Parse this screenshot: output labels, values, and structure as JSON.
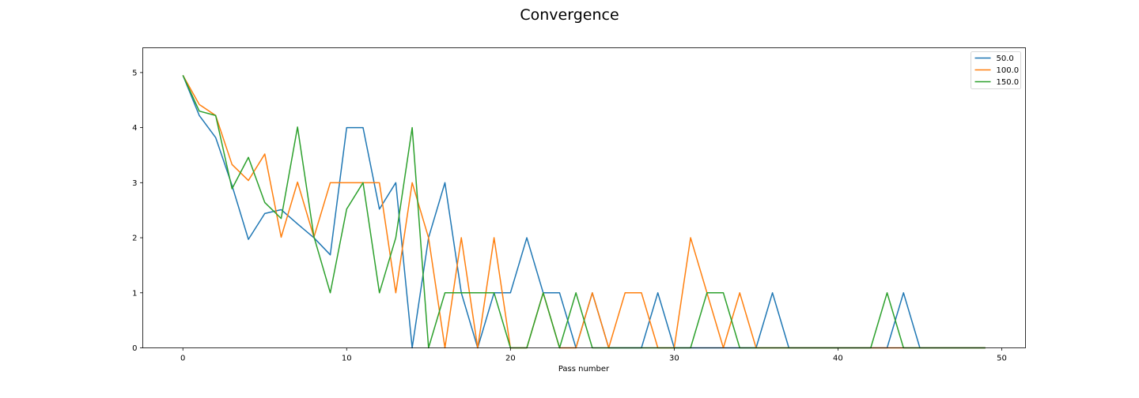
{
  "chart_data": {
    "type": "line",
    "title": "Convergence",
    "xlabel": "Pass number",
    "ylabel": "",
    "xlim": [
      -2.45,
      51.45
    ],
    "ylim": [
      0,
      5.45
    ],
    "xticks": [
      0,
      10,
      20,
      30,
      40,
      50
    ],
    "yticks": [
      0,
      1,
      2,
      3,
      4,
      5
    ],
    "grid": false,
    "legend_position": "top-right",
    "x": [
      0,
      1,
      2,
      3,
      4,
      5,
      6,
      7,
      8,
      9,
      10,
      11,
      12,
      13,
      14,
      15,
      16,
      17,
      18,
      19,
      20,
      21,
      22,
      23,
      24,
      25,
      26,
      27,
      28,
      29,
      30,
      31,
      32,
      33,
      34,
      35,
      36,
      37,
      38,
      39,
      40,
      41,
      42,
      43,
      44,
      45,
      46,
      47,
      48,
      49
    ],
    "series": [
      {
        "name": "50.0",
        "color": "#1f77b4",
        "values": [
          4.95,
          4.22,
          3.82,
          2.95,
          1.97,
          2.44,
          2.51,
          2.25,
          2.0,
          1.69,
          4.0,
          4.0,
          2.52,
          3.0,
          0,
          2.0,
          3.0,
          1.0,
          0,
          1.0,
          1.0,
          2.0,
          1.0,
          1.0,
          0,
          1.0,
          0,
          0,
          0,
          1.0,
          0,
          0,
          0,
          0,
          0,
          0,
          1.0,
          0,
          0,
          0,
          0,
          0,
          0,
          0,
          1.0,
          0,
          0,
          0,
          0,
          0
        ]
      },
      {
        "name": "100.0",
        "color": "#ff7f0e",
        "values": [
          4.95,
          4.42,
          4.22,
          3.33,
          3.04,
          3.52,
          2.01,
          3.01,
          2.01,
          3.0,
          3.0,
          3.0,
          3.0,
          1.0,
          3.0,
          2.0,
          0,
          2.0,
          0,
          2.0,
          0,
          0,
          1.0,
          0,
          0,
          1.0,
          0,
          1.0,
          1.0,
          0,
          0,
          2.0,
          1.0,
          0,
          1.0,
          0,
          0,
          0,
          0,
          0,
          0,
          0,
          0,
          0,
          0,
          0,
          0,
          0,
          0,
          0
        ]
      },
      {
        "name": "150.0",
        "color": "#2ca02c",
        "values": [
          4.95,
          4.3,
          4.22,
          2.89,
          3.46,
          2.64,
          2.35,
          4.01,
          2.02,
          1.0,
          2.52,
          3.0,
          1.0,
          2.0,
          4.0,
          0,
          1.0,
          1.0,
          1.0,
          1.0,
          0,
          0,
          1.0,
          0,
          1.0,
          0,
          0,
          0,
          0,
          0,
          0,
          0,
          1.0,
          1.0,
          0,
          0,
          0,
          0,
          0,
          0,
          0,
          0,
          0,
          1.0,
          0,
          0,
          0,
          0,
          0,
          0
        ]
      }
    ]
  }
}
